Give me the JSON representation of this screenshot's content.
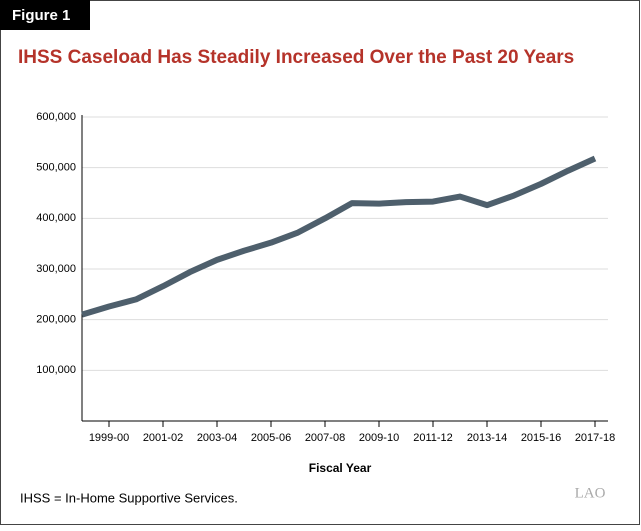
{
  "figure_label": "Figure 1",
  "footnote": "IHSS = In-Home Supportive Services.",
  "logo": "LAO",
  "chart_data": {
    "type": "line",
    "title": "IHSS Caseload Has Steadily Increased Over the Past 20 Years",
    "x_label": "Fiscal Year",
    "categories": [
      null,
      "1999-00",
      null,
      "2001-02",
      null,
      "2003-04",
      null,
      "2005-06",
      null,
      "2007-08",
      null,
      "2009-10",
      null,
      "2011-12",
      null,
      "2013-14",
      null,
      "2015-16",
      null,
      "2017-18"
    ],
    "series": [
      {
        "color": "#4e5f6c",
        "values": [
          210000,
          226000,
          240000,
          266000,
          294000,
          318000,
          336000,
          352000,
          372000,
          400000,
          430000,
          429000,
          432000,
          433000,
          443000,
          426000,
          445000,
          468000,
          494000,
          518000
        ]
      }
    ],
    "ylim": [
      0,
      600000
    ],
    "yticks": [
      {
        "value": 100000,
        "label": "100,000"
      },
      {
        "value": 200000,
        "label": "200,000"
      },
      {
        "value": 300000,
        "label": "300,000"
      },
      {
        "value": 400000,
        "label": "400,000"
      },
      {
        "value": 500000,
        "label": "500,000"
      },
      {
        "value": 600000,
        "label": "600,000"
      }
    ],
    "grid": true
  }
}
